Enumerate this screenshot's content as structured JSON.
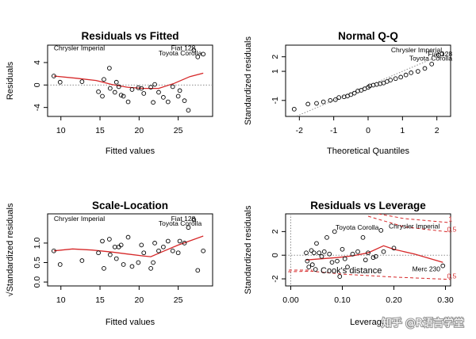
{
  "chart_data": [
    {
      "id": "rvf",
      "type": "scatter",
      "title": "Residuals vs Fitted",
      "xlabel": "Fitted values",
      "ylabel": "Residuals",
      "xlim": [
        8.3,
        29.4
      ],
      "ylim": [
        -5.6,
        7.1
      ],
      "xticks": [
        10,
        15,
        20,
        25
      ],
      "yticks": [
        -4,
        0,
        4
      ],
      "yticklabels_rotated": true,
      "refline": {
        "y": 0,
        "style": "dotted"
      },
      "points": [
        [
          9.1,
          1.6
        ],
        [
          9.9,
          0.5
        ],
        [
          12.7,
          0.6
        ],
        [
          14.8,
          -1.2
        ],
        [
          15.3,
          -2.0
        ],
        [
          15.5,
          1.0
        ],
        [
          16.2,
          3.0
        ],
        [
          16.3,
          -0.6
        ],
        [
          16.9,
          -1.3
        ],
        [
          17.1,
          0.5
        ],
        [
          17.4,
          -0.3
        ],
        [
          17.7,
          -1.8
        ],
        [
          18.0,
          -2.0
        ],
        [
          18.6,
          -3.0
        ],
        [
          19.1,
          -0.8
        ],
        [
          19.9,
          -0.5
        ],
        [
          20.3,
          -0.6
        ],
        [
          20.6,
          -1.5
        ],
        [
          21.5,
          -0.4
        ],
        [
          21.8,
          -3.1
        ],
        [
          22.0,
          0.1
        ],
        [
          22.5,
          -1.3
        ],
        [
          23.1,
          -2.2
        ],
        [
          23.7,
          -3.0
        ],
        [
          24.3,
          -0.3
        ],
        [
          25.0,
          -2.0
        ],
        [
          25.2,
          -1.0
        ],
        [
          25.8,
          -2.8
        ],
        [
          26.3,
          -4.5
        ],
        [
          27.0,
          6.2
        ],
        [
          27.5,
          5.0
        ],
        [
          28.2,
          5.5
        ]
      ],
      "smoother": [
        [
          9.1,
          1.6
        ],
        [
          12.0,
          1.2
        ],
        [
          14.5,
          0.8
        ],
        [
          16.5,
          0.1
        ],
        [
          18.5,
          -0.4
        ],
        [
          20.5,
          -0.6
        ],
        [
          22.5,
          -0.6
        ],
        [
          24.5,
          0.3
        ],
        [
          26.5,
          1.5
        ],
        [
          28.2,
          2.1
        ]
      ],
      "labels": [
        {
          "text": "Chrysler Imperial",
          "x": 9.1,
          "y": 6.2,
          "anchor": "start"
        },
        {
          "text": "Fiat 128",
          "x": 27.2,
          "y": 6.2,
          "anchor": "end"
        },
        {
          "text": "Toyota Corolla",
          "x": 28.0,
          "y": 5.3,
          "anchor": "end"
        }
      ]
    },
    {
      "id": "qq",
      "type": "scatter",
      "title": "Normal Q-Q",
      "xlabel": "Theoretical Quantiles",
      "ylabel": "Standardized residuals",
      "xlim": [
        -2.4,
        2.4
      ],
      "ylim": [
        -2.1,
        2.8
      ],
      "xticks": [
        -2,
        -1,
        0,
        1,
        2
      ],
      "yticks": [
        -1,
        1,
        2
      ],
      "yticklabels_rotated": true,
      "refline": {
        "from": [
          -2.3,
          -2.3
        ],
        "to": [
          2.3,
          2.3
        ],
        "style": "dotted"
      },
      "points": [
        [
          -2.15,
          -1.6
        ],
        [
          -1.75,
          -1.25
        ],
        [
          -1.5,
          -1.2
        ],
        [
          -1.3,
          -1.1
        ],
        [
          -1.1,
          -1.0
        ],
        [
          -0.95,
          -0.95
        ],
        [
          -0.85,
          -0.8
        ],
        [
          -0.7,
          -0.75
        ],
        [
          -0.6,
          -0.7
        ],
        [
          -0.5,
          -0.6
        ],
        [
          -0.4,
          -0.5
        ],
        [
          -0.3,
          -0.35
        ],
        [
          -0.2,
          -0.3
        ],
        [
          -0.1,
          -0.2
        ],
        [
          0.0,
          -0.1
        ],
        [
          0.05,
          0.0
        ],
        [
          0.15,
          0.05
        ],
        [
          0.25,
          0.1
        ],
        [
          0.35,
          0.15
        ],
        [
          0.45,
          0.2
        ],
        [
          0.55,
          0.3
        ],
        [
          0.65,
          0.4
        ],
        [
          0.8,
          0.5
        ],
        [
          0.95,
          0.6
        ],
        [
          1.1,
          0.75
        ],
        [
          1.25,
          0.9
        ],
        [
          1.45,
          1.0
        ],
        [
          1.65,
          1.2
        ],
        [
          1.85,
          1.5
        ],
        [
          2.05,
          2.1
        ],
        [
          2.15,
          2.2
        ]
      ],
      "labels": [
        {
          "text": "Chrysler Imperial",
          "x": 2.15,
          "y": 2.3,
          "anchor": "end"
        },
        {
          "text": "Fiat 128",
          "x": 2.45,
          "y": 2.05,
          "anchor": "end"
        },
        {
          "text": "Toyota Corolla",
          "x": 2.45,
          "y": 1.75,
          "anchor": "end"
        }
      ]
    },
    {
      "id": "sl",
      "type": "scatter",
      "title": "Scale-Location",
      "xlabel": "Fitted values",
      "ylabel": "√Standardized residuals",
      "xlim": [
        8.3,
        29.4
      ],
      "ylim": [
        -0.1,
        1.75
      ],
      "xticks": [
        10,
        15,
        20,
        25
      ],
      "yticks": [
        0.0,
        0.5,
        1.0
      ],
      "ytickformat": "0.0",
      "yticklabels_rotated": true,
      "points": [
        [
          9.1,
          0.8
        ],
        [
          9.9,
          0.45
        ],
        [
          12.7,
          0.55
        ],
        [
          14.8,
          0.75
        ],
        [
          15.3,
          1.05
        ],
        [
          15.5,
          0.35
        ],
        [
          16.2,
          1.1
        ],
        [
          16.3,
          0.7
        ],
        [
          16.9,
          0.9
        ],
        [
          17.1,
          0.6
        ],
        [
          17.4,
          0.9
        ],
        [
          17.7,
          0.95
        ],
        [
          18.0,
          0.45
        ],
        [
          18.6,
          1.15
        ],
        [
          19.1,
          0.4
        ],
        [
          19.9,
          0.5
        ],
        [
          20.3,
          0.95
        ],
        [
          20.6,
          0.75
        ],
        [
          21.5,
          0.35
        ],
        [
          21.8,
          0.5
        ],
        [
          22.0,
          1.0
        ],
        [
          22.5,
          0.8
        ],
        [
          23.1,
          0.9
        ],
        [
          23.7,
          1.05
        ],
        [
          24.3,
          0.8
        ],
        [
          25.0,
          0.75
        ],
        [
          25.2,
          1.05
        ],
        [
          25.8,
          1.0
        ],
        [
          26.3,
          1.4
        ],
        [
          27.0,
          1.6
        ],
        [
          27.5,
          0.3
        ],
        [
          28.2,
          0.8
        ]
      ],
      "smoother": [
        [
          9.1,
          0.8
        ],
        [
          11.5,
          0.85
        ],
        [
          14.0,
          0.82
        ],
        [
          16.5,
          0.77
        ],
        [
          18.5,
          0.72
        ],
        [
          20.5,
          0.67
        ],
        [
          21.5,
          0.65
        ],
        [
          23.0,
          0.78
        ],
        [
          25.0,
          0.95
        ],
        [
          26.8,
          1.08
        ],
        [
          28.2,
          1.18
        ]
      ],
      "labels": [
        {
          "text": "Chrysler Imperial",
          "x": 9.1,
          "y": 1.57,
          "anchor": "start"
        },
        {
          "text": "Fiat 128",
          "x": 27.2,
          "y": 1.57,
          "anchor": "end"
        },
        {
          "text": "Toyota Corolla",
          "x": 28.0,
          "y": 1.45,
          "anchor": "end"
        }
      ]
    },
    {
      "id": "rvl",
      "type": "scatter",
      "title": "Residuals vs Leverage",
      "xlabel": "Leverage",
      "ylabel": "Standardized residuals",
      "xlim": [
        -0.01,
        0.31
      ],
      "ylim": [
        -2.6,
        3.5
      ],
      "xticks": [
        0.0,
        0.1,
        0.2,
        0.3
      ],
      "xtickformat": "0.00",
      "yticks": [
        -2,
        0,
        2
      ],
      "yticklabels_rotated": true,
      "refline": {
        "y": 0,
        "style": "dotted"
      },
      "vline": {
        "x": 0,
        "style": "dotted"
      },
      "points": [
        [
          0.03,
          0.2
        ],
        [
          0.032,
          -0.5
        ],
        [
          0.035,
          -1.0
        ],
        [
          0.04,
          0.4
        ],
        [
          0.042,
          -0.8
        ],
        [
          0.045,
          0.2
        ],
        [
          0.048,
          -1.2
        ],
        [
          0.05,
          1.0
        ],
        [
          0.055,
          0.2
        ],
        [
          0.06,
          -0.1
        ],
        [
          0.065,
          0.3
        ],
        [
          0.07,
          1.5
        ],
        [
          0.075,
          0.1
        ],
        [
          0.08,
          -0.6
        ],
        [
          0.085,
          2.0
        ],
        [
          0.09,
          -0.5
        ],
        [
          0.095,
          -1.8
        ],
        [
          0.1,
          0.5
        ],
        [
          0.105,
          -0.3
        ],
        [
          0.11,
          -1.0
        ],
        [
          0.12,
          0.1
        ],
        [
          0.13,
          0.3
        ],
        [
          0.14,
          1.5
        ],
        [
          0.145,
          -0.4
        ],
        [
          0.15,
          0.2
        ],
        [
          0.16,
          -0.2
        ],
        [
          0.165,
          -0.1
        ],
        [
          0.175,
          2.1
        ],
        [
          0.18,
          0.3
        ],
        [
          0.2,
          0.6
        ],
        [
          0.295,
          -0.9
        ]
      ],
      "smoother": [
        [
          0.03,
          -0.4
        ],
        [
          0.06,
          -0.3
        ],
        [
          0.09,
          -0.2
        ],
        [
          0.12,
          -0.05
        ],
        [
          0.15,
          0.2
        ],
        [
          0.18,
          0.8
        ],
        [
          0.2,
          0.5
        ],
        [
          0.24,
          0.1
        ],
        [
          0.295,
          -0.6
        ]
      ],
      "cooks": {
        "name": "Cook's distance",
        "contours": [
          {
            "level": "1",
            "upper": [
              [
                0.17,
                3.5
              ],
              [
                0.22,
                3.1
              ],
              [
                0.31,
                2.75
              ]
            ],
            "lower": []
          },
          {
            "level": "0.5",
            "upper": [
              [
                0.15,
                3.3
              ],
              [
                0.22,
                2.4
              ],
              [
                0.31,
                1.95
              ]
            ],
            "lower": [
              [
                -0.005,
                -1.4
              ],
              [
                0.04,
                -1.35
              ],
              [
                0.1,
                -1.6
              ],
              [
                0.2,
                -1.85
              ],
              [
                0.31,
                -2.05
              ]
            ]
          }
        ]
      },
      "labels": [
        {
          "text": "Chrysler Imperial",
          "x": 0.19,
          "y": 2.25,
          "anchor": "start"
        },
        {
          "text": "Toyota Corolla",
          "x": 0.087,
          "y": 2.15,
          "anchor": "start"
        },
        {
          "text": "Merc 230",
          "x": 0.29,
          "y": -1.35,
          "anchor": "end"
        }
      ],
      "contour_labels": [
        {
          "text": "1",
          "x": 0.306,
          "y": 2.85
        },
        {
          "text": "0.5",
          "x": 0.303,
          "y": 2.0
        },
        {
          "text": "0.5",
          "x": 0.303,
          "y": -1.95
        }
      ]
    }
  ],
  "watermark": "知乎 @R语言学堂",
  "colors": {
    "axis": "#000000",
    "points": "#000000",
    "smoother": "#d62728",
    "cooks": "#d62728",
    "reference": "#8c8c8c"
  }
}
